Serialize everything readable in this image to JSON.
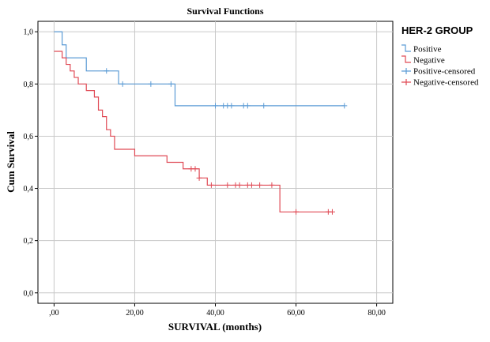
{
  "chart_data": {
    "type": "line",
    "subtype": "kaplan-meier-survival",
    "title": "Survival Functions",
    "xlabel": "SURVIVAL (months)",
    "ylabel": "Cum Survival",
    "xlim": [
      -4,
      84
    ],
    "ylim": [
      -0.04,
      1.04
    ],
    "x_ticks": [
      0,
      20,
      40,
      60,
      80
    ],
    "x_tick_labels": [
      ",00",
      "20,00",
      "40,00",
      "60,00",
      "80,00"
    ],
    "y_ticks": [
      0,
      0.2,
      0.4,
      0.6,
      0.8,
      1.0
    ],
    "y_tick_labels": [
      "0,0",
      "0,2",
      "0,4",
      "0,6",
      "0,8",
      "1,0"
    ],
    "grid": true,
    "legend": {
      "title": "HER-2 GROUP",
      "placement": "right",
      "entries": [
        "Positive",
        "Negative",
        "Positive-censored",
        "Negative-censored"
      ]
    },
    "series": [
      {
        "name": "Positive",
        "color": "#5b9bd5",
        "steps": [
          [
            0,
            1.0
          ],
          [
            2,
            0.95
          ],
          [
            3,
            0.9
          ],
          [
            8,
            0.85
          ],
          [
            16,
            0.8
          ],
          [
            30,
            0.7167
          ],
          [
            72,
            0.7167
          ]
        ],
        "censored_x": [
          13,
          17,
          24,
          29,
          40,
          42,
          43,
          44,
          47,
          48,
          52,
          72
        ]
      },
      {
        "name": "Negative",
        "color": "#e04a55",
        "steps": [
          [
            0,
            0.925
          ],
          [
            2,
            0.9
          ],
          [
            3,
            0.875
          ],
          [
            4,
            0.85
          ],
          [
            5,
            0.825
          ],
          [
            6,
            0.8
          ],
          [
            8,
            0.775
          ],
          [
            10,
            0.75
          ],
          [
            11,
            0.7
          ],
          [
            12,
            0.675
          ],
          [
            13,
            0.625
          ],
          [
            14,
            0.6
          ],
          [
            15,
            0.55
          ],
          [
            20,
            0.525
          ],
          [
            28,
            0.5
          ],
          [
            32,
            0.475
          ],
          [
            36,
            0.44
          ],
          [
            38,
            0.4125
          ],
          [
            56,
            0.31
          ],
          [
            69,
            0.31
          ]
        ],
        "censored_x": [
          34,
          35,
          36,
          39,
          43,
          45,
          46,
          48,
          49,
          51,
          54,
          60,
          68,
          69
        ]
      }
    ]
  }
}
